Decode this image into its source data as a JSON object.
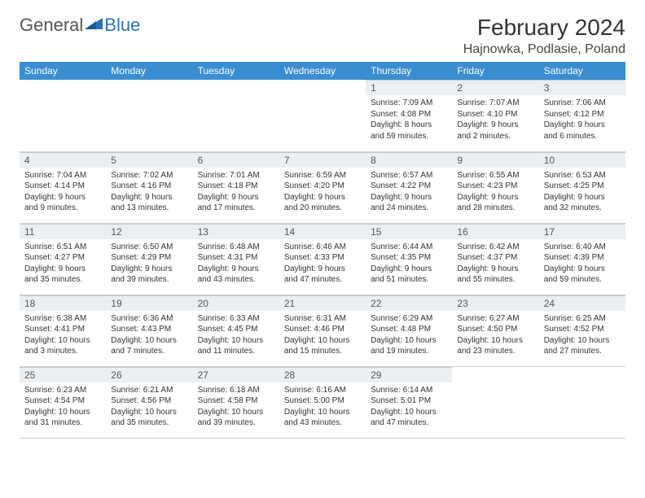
{
  "logo": {
    "word1": "General",
    "word2": "Blue"
  },
  "title": "February 2024",
  "location": "Hajnowka, Podlasie, Poland",
  "colors": {
    "header_bg": "#3a8dd0",
    "header_text": "#ffffff",
    "daynum_bg": "#eceff1",
    "border": "#d0d0d0",
    "text": "#333333"
  },
  "day_headers": [
    "Sunday",
    "Monday",
    "Tuesday",
    "Wednesday",
    "Thursday",
    "Friday",
    "Saturday"
  ],
  "weeks": [
    [
      null,
      null,
      null,
      null,
      {
        "n": "1",
        "sr": "Sunrise: 7:09 AM",
        "ss": "Sunset: 4:08 PM",
        "dl": "Daylight: 8 hours and 59 minutes."
      },
      {
        "n": "2",
        "sr": "Sunrise: 7:07 AM",
        "ss": "Sunset: 4:10 PM",
        "dl": "Daylight: 9 hours and 2 minutes."
      },
      {
        "n": "3",
        "sr": "Sunrise: 7:06 AM",
        "ss": "Sunset: 4:12 PM",
        "dl": "Daylight: 9 hours and 6 minutes."
      }
    ],
    [
      {
        "n": "4",
        "sr": "Sunrise: 7:04 AM",
        "ss": "Sunset: 4:14 PM",
        "dl": "Daylight: 9 hours and 9 minutes."
      },
      {
        "n": "5",
        "sr": "Sunrise: 7:02 AM",
        "ss": "Sunset: 4:16 PM",
        "dl": "Daylight: 9 hours and 13 minutes."
      },
      {
        "n": "6",
        "sr": "Sunrise: 7:01 AM",
        "ss": "Sunset: 4:18 PM",
        "dl": "Daylight: 9 hours and 17 minutes."
      },
      {
        "n": "7",
        "sr": "Sunrise: 6:59 AM",
        "ss": "Sunset: 4:20 PM",
        "dl": "Daylight: 9 hours and 20 minutes."
      },
      {
        "n": "8",
        "sr": "Sunrise: 6:57 AM",
        "ss": "Sunset: 4:22 PM",
        "dl": "Daylight: 9 hours and 24 minutes."
      },
      {
        "n": "9",
        "sr": "Sunrise: 6:55 AM",
        "ss": "Sunset: 4:23 PM",
        "dl": "Daylight: 9 hours and 28 minutes."
      },
      {
        "n": "10",
        "sr": "Sunrise: 6:53 AM",
        "ss": "Sunset: 4:25 PM",
        "dl": "Daylight: 9 hours and 32 minutes."
      }
    ],
    [
      {
        "n": "11",
        "sr": "Sunrise: 6:51 AM",
        "ss": "Sunset: 4:27 PM",
        "dl": "Daylight: 9 hours and 35 minutes."
      },
      {
        "n": "12",
        "sr": "Sunrise: 6:50 AM",
        "ss": "Sunset: 4:29 PM",
        "dl": "Daylight: 9 hours and 39 minutes."
      },
      {
        "n": "13",
        "sr": "Sunrise: 6:48 AM",
        "ss": "Sunset: 4:31 PM",
        "dl": "Daylight: 9 hours and 43 minutes."
      },
      {
        "n": "14",
        "sr": "Sunrise: 6:46 AM",
        "ss": "Sunset: 4:33 PM",
        "dl": "Daylight: 9 hours and 47 minutes."
      },
      {
        "n": "15",
        "sr": "Sunrise: 6:44 AM",
        "ss": "Sunset: 4:35 PM",
        "dl": "Daylight: 9 hours and 51 minutes."
      },
      {
        "n": "16",
        "sr": "Sunrise: 6:42 AM",
        "ss": "Sunset: 4:37 PM",
        "dl": "Daylight: 9 hours and 55 minutes."
      },
      {
        "n": "17",
        "sr": "Sunrise: 6:40 AM",
        "ss": "Sunset: 4:39 PM",
        "dl": "Daylight: 9 hours and 59 minutes."
      }
    ],
    [
      {
        "n": "18",
        "sr": "Sunrise: 6:38 AM",
        "ss": "Sunset: 4:41 PM",
        "dl": "Daylight: 10 hours and 3 minutes."
      },
      {
        "n": "19",
        "sr": "Sunrise: 6:36 AM",
        "ss": "Sunset: 4:43 PM",
        "dl": "Daylight: 10 hours and 7 minutes."
      },
      {
        "n": "20",
        "sr": "Sunrise: 6:33 AM",
        "ss": "Sunset: 4:45 PM",
        "dl": "Daylight: 10 hours and 11 minutes."
      },
      {
        "n": "21",
        "sr": "Sunrise: 6:31 AM",
        "ss": "Sunset: 4:46 PM",
        "dl": "Daylight: 10 hours and 15 minutes."
      },
      {
        "n": "22",
        "sr": "Sunrise: 6:29 AM",
        "ss": "Sunset: 4:48 PM",
        "dl": "Daylight: 10 hours and 19 minutes."
      },
      {
        "n": "23",
        "sr": "Sunrise: 6:27 AM",
        "ss": "Sunset: 4:50 PM",
        "dl": "Daylight: 10 hours and 23 minutes."
      },
      {
        "n": "24",
        "sr": "Sunrise: 6:25 AM",
        "ss": "Sunset: 4:52 PM",
        "dl": "Daylight: 10 hours and 27 minutes."
      }
    ],
    [
      {
        "n": "25",
        "sr": "Sunrise: 6:23 AM",
        "ss": "Sunset: 4:54 PM",
        "dl": "Daylight: 10 hours and 31 minutes."
      },
      {
        "n": "26",
        "sr": "Sunrise: 6:21 AM",
        "ss": "Sunset: 4:56 PM",
        "dl": "Daylight: 10 hours and 35 minutes."
      },
      {
        "n": "27",
        "sr": "Sunrise: 6:18 AM",
        "ss": "Sunset: 4:58 PM",
        "dl": "Daylight: 10 hours and 39 minutes."
      },
      {
        "n": "28",
        "sr": "Sunrise: 6:16 AM",
        "ss": "Sunset: 5:00 PM",
        "dl": "Daylight: 10 hours and 43 minutes."
      },
      {
        "n": "29",
        "sr": "Sunrise: 6:14 AM",
        "ss": "Sunset: 5:01 PM",
        "dl": "Daylight: 10 hours and 47 minutes."
      },
      null,
      null
    ]
  ]
}
